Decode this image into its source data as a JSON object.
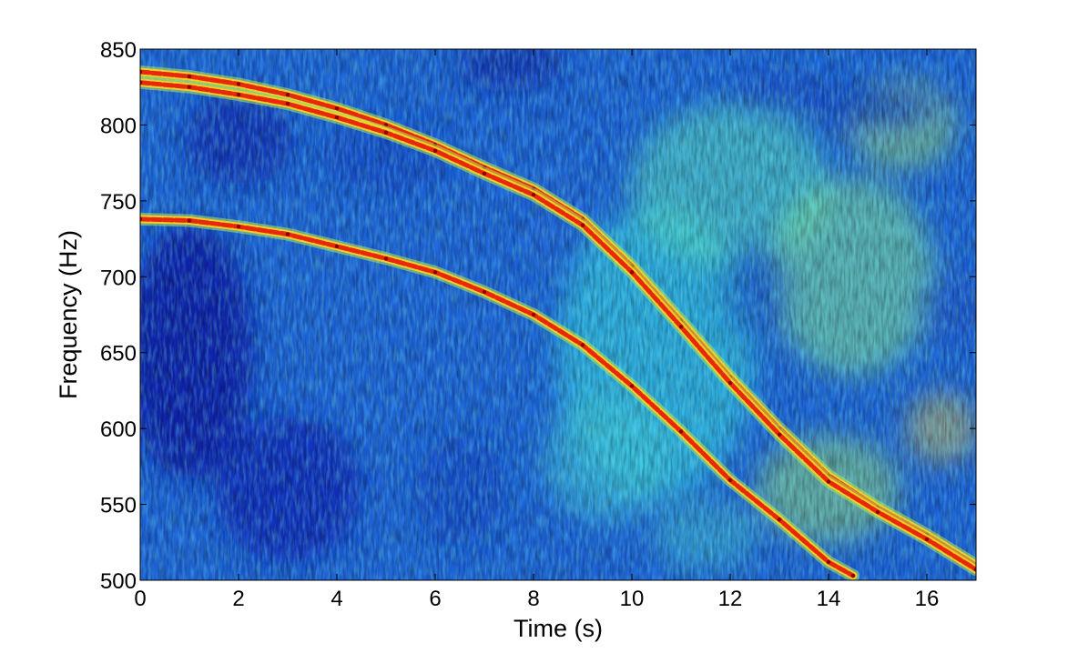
{
  "chart_data": {
    "type": "heatmap",
    "subtype": "spectrogram",
    "title": "",
    "xlabel": "Time (s)",
    "ylabel": "Frequency (Hz)",
    "xlim": [
      0,
      17
    ],
    "ylim": [
      500,
      850
    ],
    "xticks": [
      0,
      2,
      4,
      6,
      8,
      10,
      12,
      14,
      16
    ],
    "yticks": [
      500,
      550,
      600,
      650,
      700,
      750,
      800,
      850
    ],
    "grid": false,
    "colormap": "jet",
    "series": [
      {
        "x": [
          0,
          1,
          2,
          3,
          4,
          5,
          6,
          7,
          8,
          9,
          10,
          11,
          12,
          13,
          14,
          15,
          16,
          17
        ],
        "y": [
          835,
          832,
          827,
          820,
          811,
          800,
          787,
          772,
          758,
          738,
          707,
          671,
          634,
          600,
          569,
          548,
          530,
          510
        ]
      },
      {
        "x": [
          0,
          1,
          2,
          3,
          4,
          5,
          6,
          7,
          8,
          9,
          10,
          11,
          12,
          13,
          14,
          15,
          16,
          17
        ],
        "y": [
          828,
          825,
          820,
          814,
          805,
          795,
          783,
          768,
          754,
          734,
          703,
          667,
          630,
          596,
          565,
          545,
          527,
          507
        ]
      },
      {
        "x": [
          0,
          1,
          2,
          3,
          4,
          5,
          6,
          7,
          8,
          9,
          10,
          11,
          12,
          13,
          14,
          14.5
        ],
        "y": [
          738,
          737,
          733,
          728,
          720,
          712,
          703,
          690,
          675,
          655,
          628,
          598,
          566,
          540,
          512,
          503
        ]
      }
    ]
  }
}
